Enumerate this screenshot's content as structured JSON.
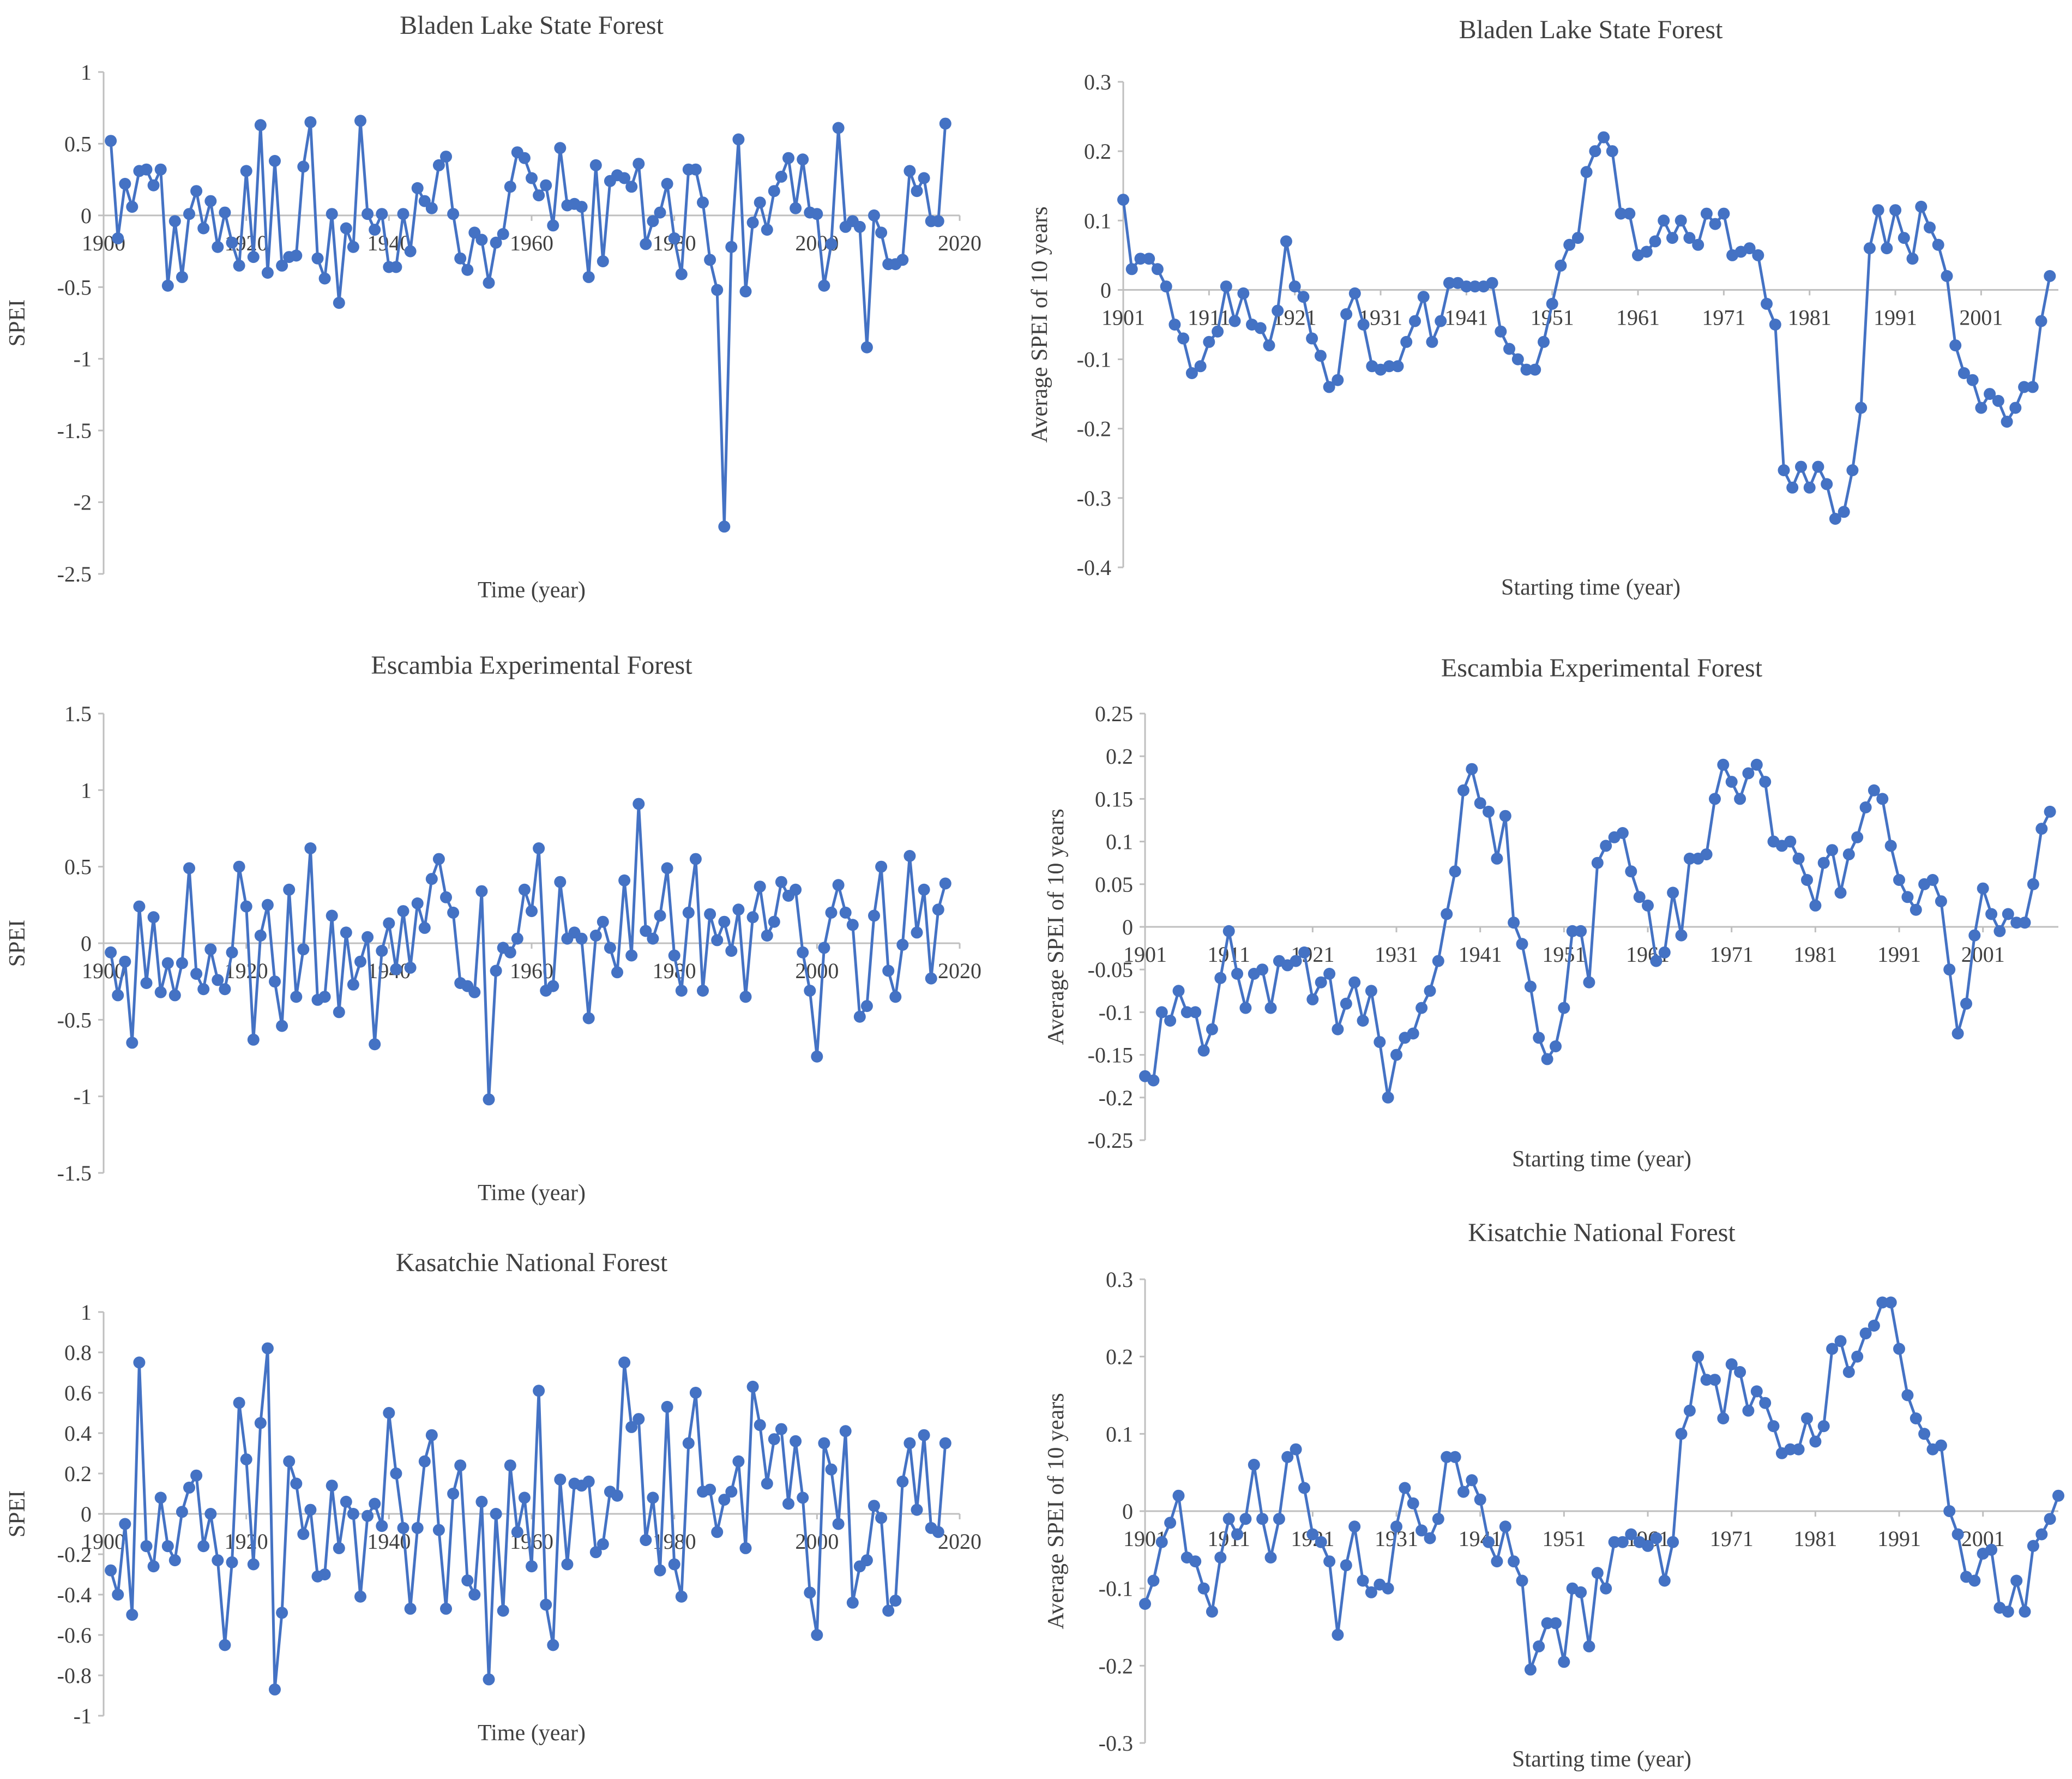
{
  "chart_data": [
    {
      "type": "line",
      "title": "Bladen Lake State Forest",
      "xlabel": "Time (year)",
      "ylabel": "SPEI",
      "ylim": [
        -2.5,
        1
      ],
      "yticks": [
        1,
        0.5,
        0,
        -0.5,
        -1,
        -1.5,
        -2,
        -2.5
      ],
      "ytick_labels": [
        "1",
        "0.5",
        "0",
        "-0.5",
        "-1",
        "-1.5",
        "-2",
        "-2.5"
      ],
      "xlim": [
        1900,
        2020
      ],
      "xticks": [
        1900,
        1920,
        1940,
        1960,
        1980,
        2000,
        2020
      ],
      "xtick_labels": [
        "1900",
        "1920",
        "1940",
        "1960",
        "1980",
        "2000",
        "2020"
      ],
      "x_start": 1901,
      "x_step": 1,
      "values": [
        0.52,
        -0.16,
        0.22,
        0.06,
        0.31,
        0.32,
        0.21,
        0.32,
        -0.49,
        -0.04,
        -0.43,
        0.01,
        0.17,
        -0.09,
        0.1,
        -0.22,
        0.02,
        -0.19,
        -0.35,
        0.31,
        -0.29,
        0.63,
        -0.4,
        0.38,
        -0.35,
        -0.29,
        -0.28,
        0.34,
        0.65,
        -0.3,
        -0.44,
        0.01,
        -0.61,
        -0.09,
        -0.22,
        0.66,
        0.01,
        -0.1,
        0.01,
        -0.36,
        -0.36,
        0.01,
        -0.25,
        0.19,
        0.1,
        0.05,
        0.35,
        0.41,
        0.01,
        -0.3,
        -0.38,
        -0.12,
        -0.17,
        -0.47,
        -0.19,
        -0.13,
        0.2,
        0.44,
        0.4,
        0.26,
        0.14,
        0.21,
        -0.07,
        0.47,
        0.07,
        0.08,
        0.06,
        -0.43,
        0.35,
        -0.32,
        0.24,
        0.28,
        0.26,
        0.2,
        0.36,
        -0.2,
        -0.04,
        0.02,
        0.22,
        -0.16,
        -0.41,
        0.32,
        0.32,
        0.09,
        -0.31,
        -0.52,
        -2.17,
        -0.22,
        0.53,
        -0.53,
        -0.05,
        0.09,
        -0.1,
        0.17,
        0.27,
        0.4,
        0.05,
        0.39,
        0.02,
        0.01,
        -0.49,
        -0.2,
        0.61,
        -0.08,
        -0.04,
        -0.08,
        -0.92,
        0.0,
        -0.12,
        -0.34,
        -0.34,
        -0.31,
        0.31,
        0.17,
        0.26,
        -0.04,
        -0.04,
        0.64
      ]
    },
    {
      "type": "line",
      "title": "Bladen Lake State Forest",
      "xlabel": "Starting time (year)",
      "ylabel": "Average SPEI of 10 years",
      "ylim": [
        -0.4,
        0.3
      ],
      "yticks": [
        0.3,
        0.2,
        0.1,
        0,
        -0.1,
        -0.2,
        -0.3,
        -0.4
      ],
      "ytick_labels": [
        "0.3",
        "0.2",
        "0.1",
        "0",
        "-0.1",
        "-0.2",
        "-0.3",
        "-0.4"
      ],
      "xlim": [
        1901,
        2010
      ],
      "xticks": [
        1901,
        1911,
        1921,
        1931,
        1941,
        1951,
        1961,
        1971,
        1981,
        1991,
        2001
      ],
      "xtick_labels": [
        "1901",
        "1911",
        "1921",
        "1931",
        "1941",
        "1951",
        "1961",
        "1971",
        "1981",
        "1991",
        "2001"
      ],
      "x_start": 1901,
      "x_step": 1,
      "values": [
        0.13,
        0.03,
        0.045,
        0.045,
        0.03,
        0.005,
        -0.05,
        -0.07,
        -0.12,
        -0.11,
        -0.075,
        -0.06,
        0.005,
        -0.045,
        -0.005,
        -0.05,
        -0.055,
        -0.08,
        -0.03,
        0.07,
        0.005,
        -0.01,
        -0.07,
        -0.095,
        -0.14,
        -0.13,
        -0.035,
        -0.005,
        -0.05,
        -0.11,
        -0.115,
        -0.11,
        -0.11,
        -0.075,
        -0.045,
        -0.01,
        -0.075,
        -0.045,
        0.01,
        0.01,
        0.005,
        0.005,
        0.005,
        0.01,
        -0.06,
        -0.085,
        -0.1,
        -0.115,
        -0.115,
        -0.075,
        -0.02,
        0.035,
        0.065,
        0.075,
        0.17,
        0.2,
        0.22,
        0.2,
        0.11,
        0.11,
        0.05,
        0.055,
        0.07,
        0.1,
        0.075,
        0.1,
        0.075,
        0.065,
        0.11,
        0.095,
        0.11,
        0.05,
        0.055,
        0.06,
        0.05,
        -0.02,
        -0.05,
        -0.26,
        -0.285,
        -0.255,
        -0.285,
        -0.255,
        -0.28,
        -0.33,
        -0.32,
        -0.26,
        -0.17,
        0.06,
        0.115,
        0.06,
        0.115,
        0.075,
        0.045,
        0.12,
        0.09,
        0.065,
        0.02,
        -0.08,
        -0.12,
        -0.13,
        -0.17,
        -0.15,
        -0.16,
        -0.19,
        -0.17,
        -0.14,
        -0.14,
        -0.045,
        0.02
      ]
    },
    {
      "type": "line",
      "title": "Escambia Experimental Forest",
      "xlabel": "Time (year)",
      "ylabel": "SPEI",
      "ylim": [
        -1.5,
        1.5
      ],
      "yticks": [
        1.5,
        1,
        0.5,
        0,
        -0.5,
        -1,
        -1.5
      ],
      "ytick_labels": [
        "1.5",
        "1",
        "0.5",
        "0",
        "-0.5",
        "-1",
        "-1.5"
      ],
      "xlim": [
        1900,
        2020
      ],
      "xticks": [
        1900,
        1920,
        1940,
        1960,
        1980,
        2000,
        2020
      ],
      "xtick_labels": [
        "1900",
        "1920",
        "1940",
        "1960",
        "1980",
        "2000",
        "2020"
      ],
      "x_start": 1901,
      "x_step": 1,
      "values": [
        -0.06,
        -0.34,
        -0.12,
        -0.65,
        0.24,
        -0.26,
        0.17,
        -0.32,
        -0.13,
        -0.34,
        -0.13,
        0.49,
        -0.2,
        -0.3,
        -0.04,
        -0.24,
        -0.3,
        -0.06,
        0.5,
        0.24,
        -0.63,
        0.05,
        0.25,
        -0.25,
        -0.54,
        0.35,
        -0.35,
        -0.04,
        0.62,
        -0.37,
        -0.35,
        0.18,
        -0.45,
        0.07,
        -0.27,
        -0.12,
        0.04,
        -0.66,
        -0.05,
        0.13,
        -0.17,
        0.21,
        -0.16,
        0.26,
        0.1,
        0.42,
        0.55,
        0.3,
        0.2,
        -0.26,
        -0.28,
        -0.32,
        0.34,
        -1.02,
        -0.18,
        -0.03,
        -0.06,
        0.03,
        0.35,
        0.21,
        0.62,
        -0.31,
        -0.28,
        0.4,
        0.03,
        0.07,
        0.03,
        -0.49,
        0.05,
        0.14,
        -0.03,
        -0.19,
        0.41,
        -0.08,
        0.91,
        0.08,
        0.03,
        0.18,
        0.49,
        -0.08,
        -0.31,
        0.2,
        0.55,
        -0.31,
        0.19,
        0.02,
        0.14,
        -0.05,
        0.22,
        -0.35,
        0.17,
        0.37,
        0.05,
        0.14,
        0.4,
        0.31,
        0.35,
        -0.06,
        -0.31,
        -0.74,
        -0.03,
        0.2,
        0.38,
        0.2,
        0.12,
        -0.48,
        -0.41,
        0.18,
        0.5,
        -0.18,
        -0.35,
        -0.01,
        0.57,
        0.07,
        0.35,
        -0.23,
        0.22,
        0.39
      ]
    },
    {
      "type": "line",
      "title": "Escambia Experimental Forest",
      "xlabel": "Starting time (year)",
      "ylabel": "Average SPEI of 10 years",
      "ylim": [
        -0.25,
        0.25
      ],
      "yticks": [
        0.25,
        0.2,
        0.15,
        0.1,
        0.05,
        0,
        -0.05,
        -0.1,
        -0.15,
        -0.2,
        -0.25
      ],
      "ytick_labels": [
        "0.25",
        "0.2",
        "0.15",
        "0.1",
        "0.05",
        "0",
        "-0.05",
        "-0.1",
        "-0.15",
        "-0.2",
        "-0.25"
      ],
      "xlim": [
        1901,
        2010
      ],
      "xticks": [
        1901,
        1911,
        1921,
        1931,
        1941,
        1951,
        1961,
        1971,
        1981,
        1991,
        2001
      ],
      "xtick_labels": [
        "1901",
        "1911",
        "1921",
        "1931",
        "1941",
        "1951",
        "1961",
        "1971",
        "1981",
        "1991",
        "2001"
      ],
      "x_start": 1901,
      "x_step": 1,
      "values": [
        -0.175,
        -0.18,
        -0.1,
        -0.11,
        -0.075,
        -0.1,
        -0.1,
        -0.145,
        -0.12,
        -0.06,
        -0.005,
        -0.055,
        -0.095,
        -0.055,
        -0.05,
        -0.095,
        -0.04,
        -0.045,
        -0.04,
        -0.03,
        -0.085,
        -0.065,
        -0.055,
        -0.12,
        -0.09,
        -0.065,
        -0.11,
        -0.075,
        -0.135,
        -0.2,
        -0.15,
        -0.13,
        -0.125,
        -0.095,
        -0.075,
        -0.04,
        0.015,
        0.065,
        0.16,
        0.185,
        0.145,
        0.135,
        0.08,
        0.13,
        0.005,
        -0.02,
        -0.07,
        -0.13,
        -0.155,
        -0.14,
        -0.095,
        -0.005,
        -0.005,
        -0.065,
        0.075,
        0.095,
        0.105,
        0.11,
        0.065,
        0.035,
        0.025,
        -0.04,
        -0.03,
        0.04,
        -0.01,
        0.08,
        0.08,
        0.085,
        0.15,
        0.19,
        0.17,
        0.15,
        0.18,
        0.19,
        0.17,
        0.1,
        0.095,
        0.1,
        0.08,
        0.055,
        0.025,
        0.075,
        0.09,
        0.04,
        0.085,
        0.105,
        0.14,
        0.16,
        0.15,
        0.095,
        0.055,
        0.035,
        0.02,
        0.05,
        0.055,
        0.03,
        -0.05,
        -0.125,
        -0.09,
        -0.01,
        0.045,
        0.015,
        -0.005,
        0.015,
        0.005,
        0.005,
        0.05,
        0.115,
        0.135
      ]
    },
    {
      "type": "line",
      "title": "Kasatchie National Forest",
      "xlabel": "Time (year)",
      "ylabel": "SPEI",
      "ylim": [
        -1,
        1
      ],
      "yticks": [
        1,
        0.8,
        0.6,
        0.4,
        0.2,
        0,
        -0.2,
        -0.4,
        -0.6,
        -0.8,
        -1
      ],
      "ytick_labels": [
        "1",
        "0.8",
        "0.6",
        "0.4",
        "0.2",
        "0",
        "-0.2",
        "-0.4",
        "-0.6",
        "-0.8",
        "-1"
      ],
      "xlim": [
        1900,
        2020
      ],
      "xticks": [
        1900,
        1920,
        1940,
        1960,
        1980,
        2000,
        2020
      ],
      "xtick_labels": [
        "1900",
        "1920",
        "1940",
        "1960",
        "1980",
        "2000",
        "2020"
      ],
      "x_start": 1901,
      "x_step": 1,
      "values": [
        -0.28,
        -0.4,
        -0.05,
        -0.5,
        0.75,
        -0.16,
        -0.26,
        0.08,
        -0.16,
        -0.23,
        0.01,
        0.13,
        0.19,
        -0.16,
        0.0,
        -0.23,
        -0.65,
        -0.24,
        0.55,
        0.27,
        -0.25,
        0.45,
        0.82,
        -0.87,
        -0.49,
        0.26,
        0.15,
        -0.1,
        0.02,
        -0.31,
        -0.3,
        0.14,
        -0.17,
        0.06,
        0.0,
        -0.41,
        -0.01,
        0.05,
        -0.06,
        0.5,
        0.2,
        -0.07,
        -0.47,
        -0.07,
        0.26,
        0.39,
        -0.08,
        -0.47,
        0.1,
        0.24,
        -0.33,
        -0.4,
        0.06,
        -0.82,
        0.0,
        -0.48,
        0.24,
        -0.09,
        0.08,
        -0.26,
        0.61,
        -0.45,
        -0.65,
        0.17,
        -0.25,
        0.15,
        0.14,
        0.16,
        -0.19,
        -0.15,
        0.11,
        0.09,
        0.75,
        0.43,
        0.47,
        -0.13,
        0.08,
        -0.28,
        0.53,
        -0.25,
        -0.41,
        0.35,
        0.6,
        0.11,
        0.12,
        -0.09,
        0.07,
        0.11,
        0.26,
        -0.17,
        0.63,
        0.44,
        0.15,
        0.37,
        0.42,
        0.05,
        0.36,
        0.08,
        -0.39,
        -0.6,
        0.35,
        0.22,
        -0.05,
        0.41,
        -0.44,
        -0.26,
        -0.23,
        0.04,
        -0.02,
        -0.48,
        -0.43,
        0.16,
        0.35,
        0.02,
        0.39,
        -0.07,
        -0.09,
        0.35
      ]
    },
    {
      "type": "line",
      "title": "Kisatchie National Forest",
      "xlabel": "Starting time (year)",
      "ylabel": "Average SPEI of 10 years",
      "ylim": [
        -0.3,
        0.3
      ],
      "yticks": [
        0.3,
        0.2,
        0.1,
        0,
        -0.1,
        -0.2,
        -0.3
      ],
      "ytick_labels": [
        "0.3",
        "0.2",
        "0.1",
        "0",
        "-0.1",
        "-0.2",
        "-0.3"
      ],
      "xlim": [
        1901,
        2010
      ],
      "xticks": [
        1901,
        1911,
        1921,
        1931,
        1941,
        1951,
        1961,
        1971,
        1981,
        1991,
        2001
      ],
      "xtick_labels": [
        "1901",
        "1911",
        "1921",
        "1931",
        "1941",
        "1951",
        "1961",
        "1971",
        "1981",
        "1991",
        "2001"
      ],
      "x_start": 1901,
      "x_step": 1,
      "values": [
        -0.12,
        -0.09,
        -0.04,
        -0.015,
        0.02,
        -0.06,
        -0.065,
        -0.1,
        -0.13,
        -0.06,
        -0.01,
        -0.03,
        -0.01,
        0.06,
        -0.01,
        -0.06,
        -0.01,
        0.07,
        0.08,
        0.03,
        -0.03,
        -0.04,
        -0.065,
        -0.16,
        -0.07,
        -0.02,
        -0.09,
        -0.105,
        -0.095,
        -0.1,
        -0.02,
        0.03,
        0.01,
        -0.025,
        -0.035,
        -0.01,
        0.07,
        0.07,
        0.025,
        0.04,
        0.015,
        -0.04,
        -0.065,
        -0.02,
        -0.065,
        -0.09,
        -0.205,
        -0.175,
        -0.145,
        -0.145,
        -0.195,
        -0.1,
        -0.105,
        -0.175,
        -0.08,
        -0.1,
        -0.04,
        -0.04,
        -0.03,
        -0.04,
        -0.045,
        -0.035,
        -0.09,
        -0.04,
        0.1,
        0.13,
        0.2,
        0.17,
        0.17,
        0.12,
        0.19,
        0.18,
        0.13,
        0.155,
        0.14,
        0.11,
        0.075,
        0.08,
        0.08,
        0.12,
        0.09,
        0.11,
        0.21,
        0.22,
        0.18,
        0.2,
        0.23,
        0.24,
        0.27,
        0.27,
        0.21,
        0.15,
        0.12,
        0.1,
        0.08,
        0.085,
        0.0,
        -0.03,
        -0.085,
        -0.09,
        -0.055,
        -0.05,
        -0.125,
        -0.13,
        -0.09,
        -0.13,
        -0.045,
        -0.03,
        -0.01,
        0.02
      ]
    }
  ]
}
